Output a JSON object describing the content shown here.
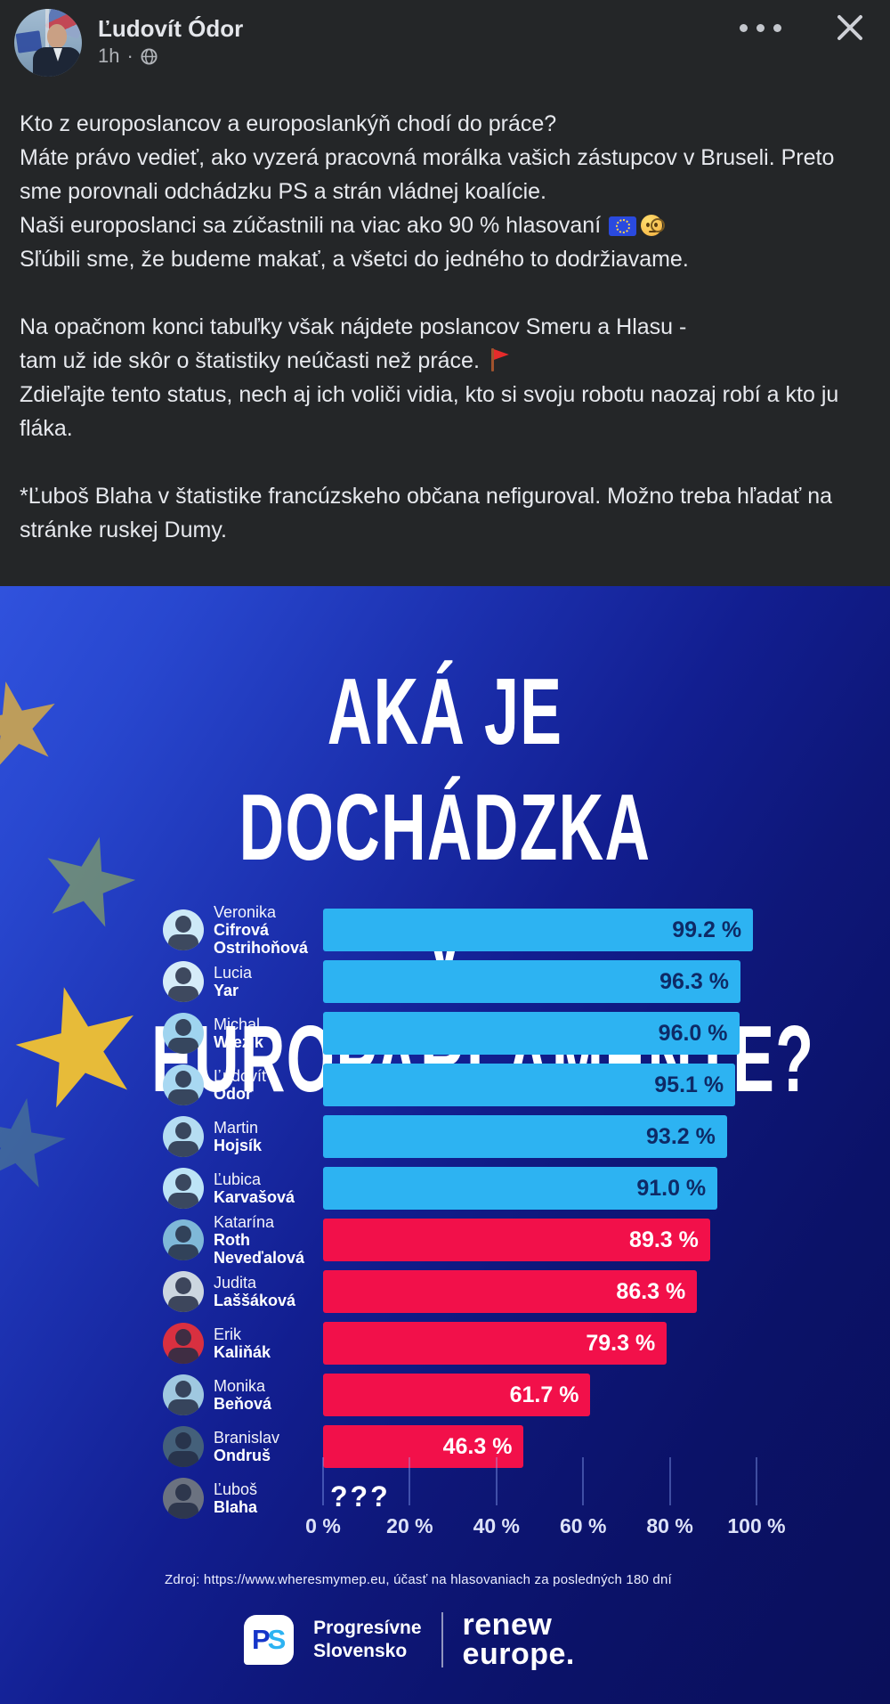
{
  "post": {
    "author": "Ľudovít Ódor",
    "time": "1h",
    "time_separator": "·",
    "audience_icon": "globe-icon",
    "header_action_icons": [
      "more-options-icon",
      "close-icon"
    ],
    "paragraphs": [
      {
        "segments": [
          {
            "text": "Kto z europoslancov a europoslankýň chodí do práce?\nMáte právo vedieť, ako vyzerá pracovná morálka vašich zástupcov v Bruseli. Preto sme porovnali odchádzku PS a strán vládnej koalície.\nNaši europoslanci sa zúčastnili na viac ako 90 % hlasovaní "
          },
          {
            "icon": "eu-flag"
          },
          {
            "icon": "monocle-face"
          },
          {
            "text": "\nSľúbili sme, že budeme makať, a všetci do jedného to dodržiavame."
          }
        ]
      },
      {
        "segments": [
          {
            "text": "Na opačnom konci tabuľky však nájdete poslancov Smeru a Hlasu -\ntam už ide skôr o štatistiky neúčasti než práce. "
          },
          {
            "icon": "red-flag"
          },
          {
            "text": "\nZdieľajte tento status, nech aj ich voliči vidia, kto si svoju robotu naozaj robí a kto ju fláka."
          }
        ]
      },
      {
        "segments": [
          {
            "text": "*Ľuboš Blaha v štatistike francúzskeho občana nefiguroval. Možno treba hľadať na stránke ruskej Dumy."
          }
        ]
      }
    ]
  },
  "graphic": {
    "title_line1": "AKÁ JE DOCHÁDZKA",
    "title_line2": "V EUROPARLAMENTE?",
    "source": "Zdroj: https://www.wheresmymep.eu, účasť na hlasovaniach za posledných 180 dní",
    "footer": {
      "ps_p": "P",
      "ps_s": "S",
      "party_line1": "Progresívne",
      "party_line2": "Slovensko",
      "renew_line1": "renew",
      "renew_line2": "europe."
    }
  },
  "chart_data": {
    "type": "bar",
    "orientation": "horizontal",
    "title": "AKÁ JE DOCHÁDZKA V EUROPARLAMENTE?",
    "xlabel": "",
    "ylabel": "",
    "xlim": [
      0,
      100
    ],
    "x_ticks": [
      "0 %",
      "20 %",
      "40 %",
      "60 %",
      "80 %",
      "100 %"
    ],
    "grid": "vertical tick lines at bottom of plot",
    "legend": "none",
    "bar_color_blue": "#2db3f2",
    "bar_color_red": "#f2104a",
    "value_text_on_blue": "#0e2a66",
    "value_text_on_red": "#ffffff",
    "background_navy": "#0e1779",
    "rows": [
      {
        "first_name": "Veronika",
        "surname": "Cifrová\nOstrihoňová",
        "value": 99.2,
        "label": "99.2 %",
        "group": "blue",
        "photo_bg": "#cde9f7"
      },
      {
        "first_name": "Lucia",
        "surname": "Yar",
        "value": 96.3,
        "label": "96.3 %",
        "group": "blue",
        "photo_bg": "#d6ecf8"
      },
      {
        "first_name": "Michal",
        "surname": "Wiezik",
        "value": 96.0,
        "label": "96.0 %",
        "group": "blue",
        "photo_bg": "#9fd4ef"
      },
      {
        "first_name": "Ľudovít",
        "surname": "Ódor",
        "value": 95.1,
        "label": "95.1 %",
        "group": "blue",
        "photo_bg": "#a8d8f2"
      },
      {
        "first_name": "Martin",
        "surname": "Hojsík",
        "value": 93.2,
        "label": "93.2 %",
        "group": "blue",
        "photo_bg": "#b5ddf2"
      },
      {
        "first_name": "Ľubica",
        "surname": "Karvašová",
        "value": 91.0,
        "label": "91.0 %",
        "group": "blue",
        "photo_bg": "#bde4f6"
      },
      {
        "first_name": "Katarína",
        "surname": "Roth\nNeveďalová",
        "value": 89.3,
        "label": "89.3 %",
        "group": "red",
        "photo_bg": "#7fb8d8"
      },
      {
        "first_name": "Judita",
        "surname": "Laššáková",
        "value": 86.3,
        "label": "86.3 %",
        "group": "red",
        "photo_bg": "#ccd6e0"
      },
      {
        "first_name": "Erik",
        "surname": "Kaliňák",
        "value": 79.3,
        "label": "79.3 %",
        "group": "red",
        "photo_bg": "#d93040"
      },
      {
        "first_name": "Monika",
        "surname": "Beňová",
        "value": 61.7,
        "label": "61.7 %",
        "group": "red",
        "photo_bg": "#9fc8e0"
      },
      {
        "first_name": "Branislav",
        "surname": "Ondruš",
        "value": 46.3,
        "label": "46.3 %",
        "group": "red",
        "photo_bg": "#44607a"
      },
      {
        "first_name": "Ľuboš",
        "surname": "Blaha",
        "value": null,
        "label": "???",
        "group": "red",
        "photo_bg": "#6b7280"
      }
    ]
  }
}
